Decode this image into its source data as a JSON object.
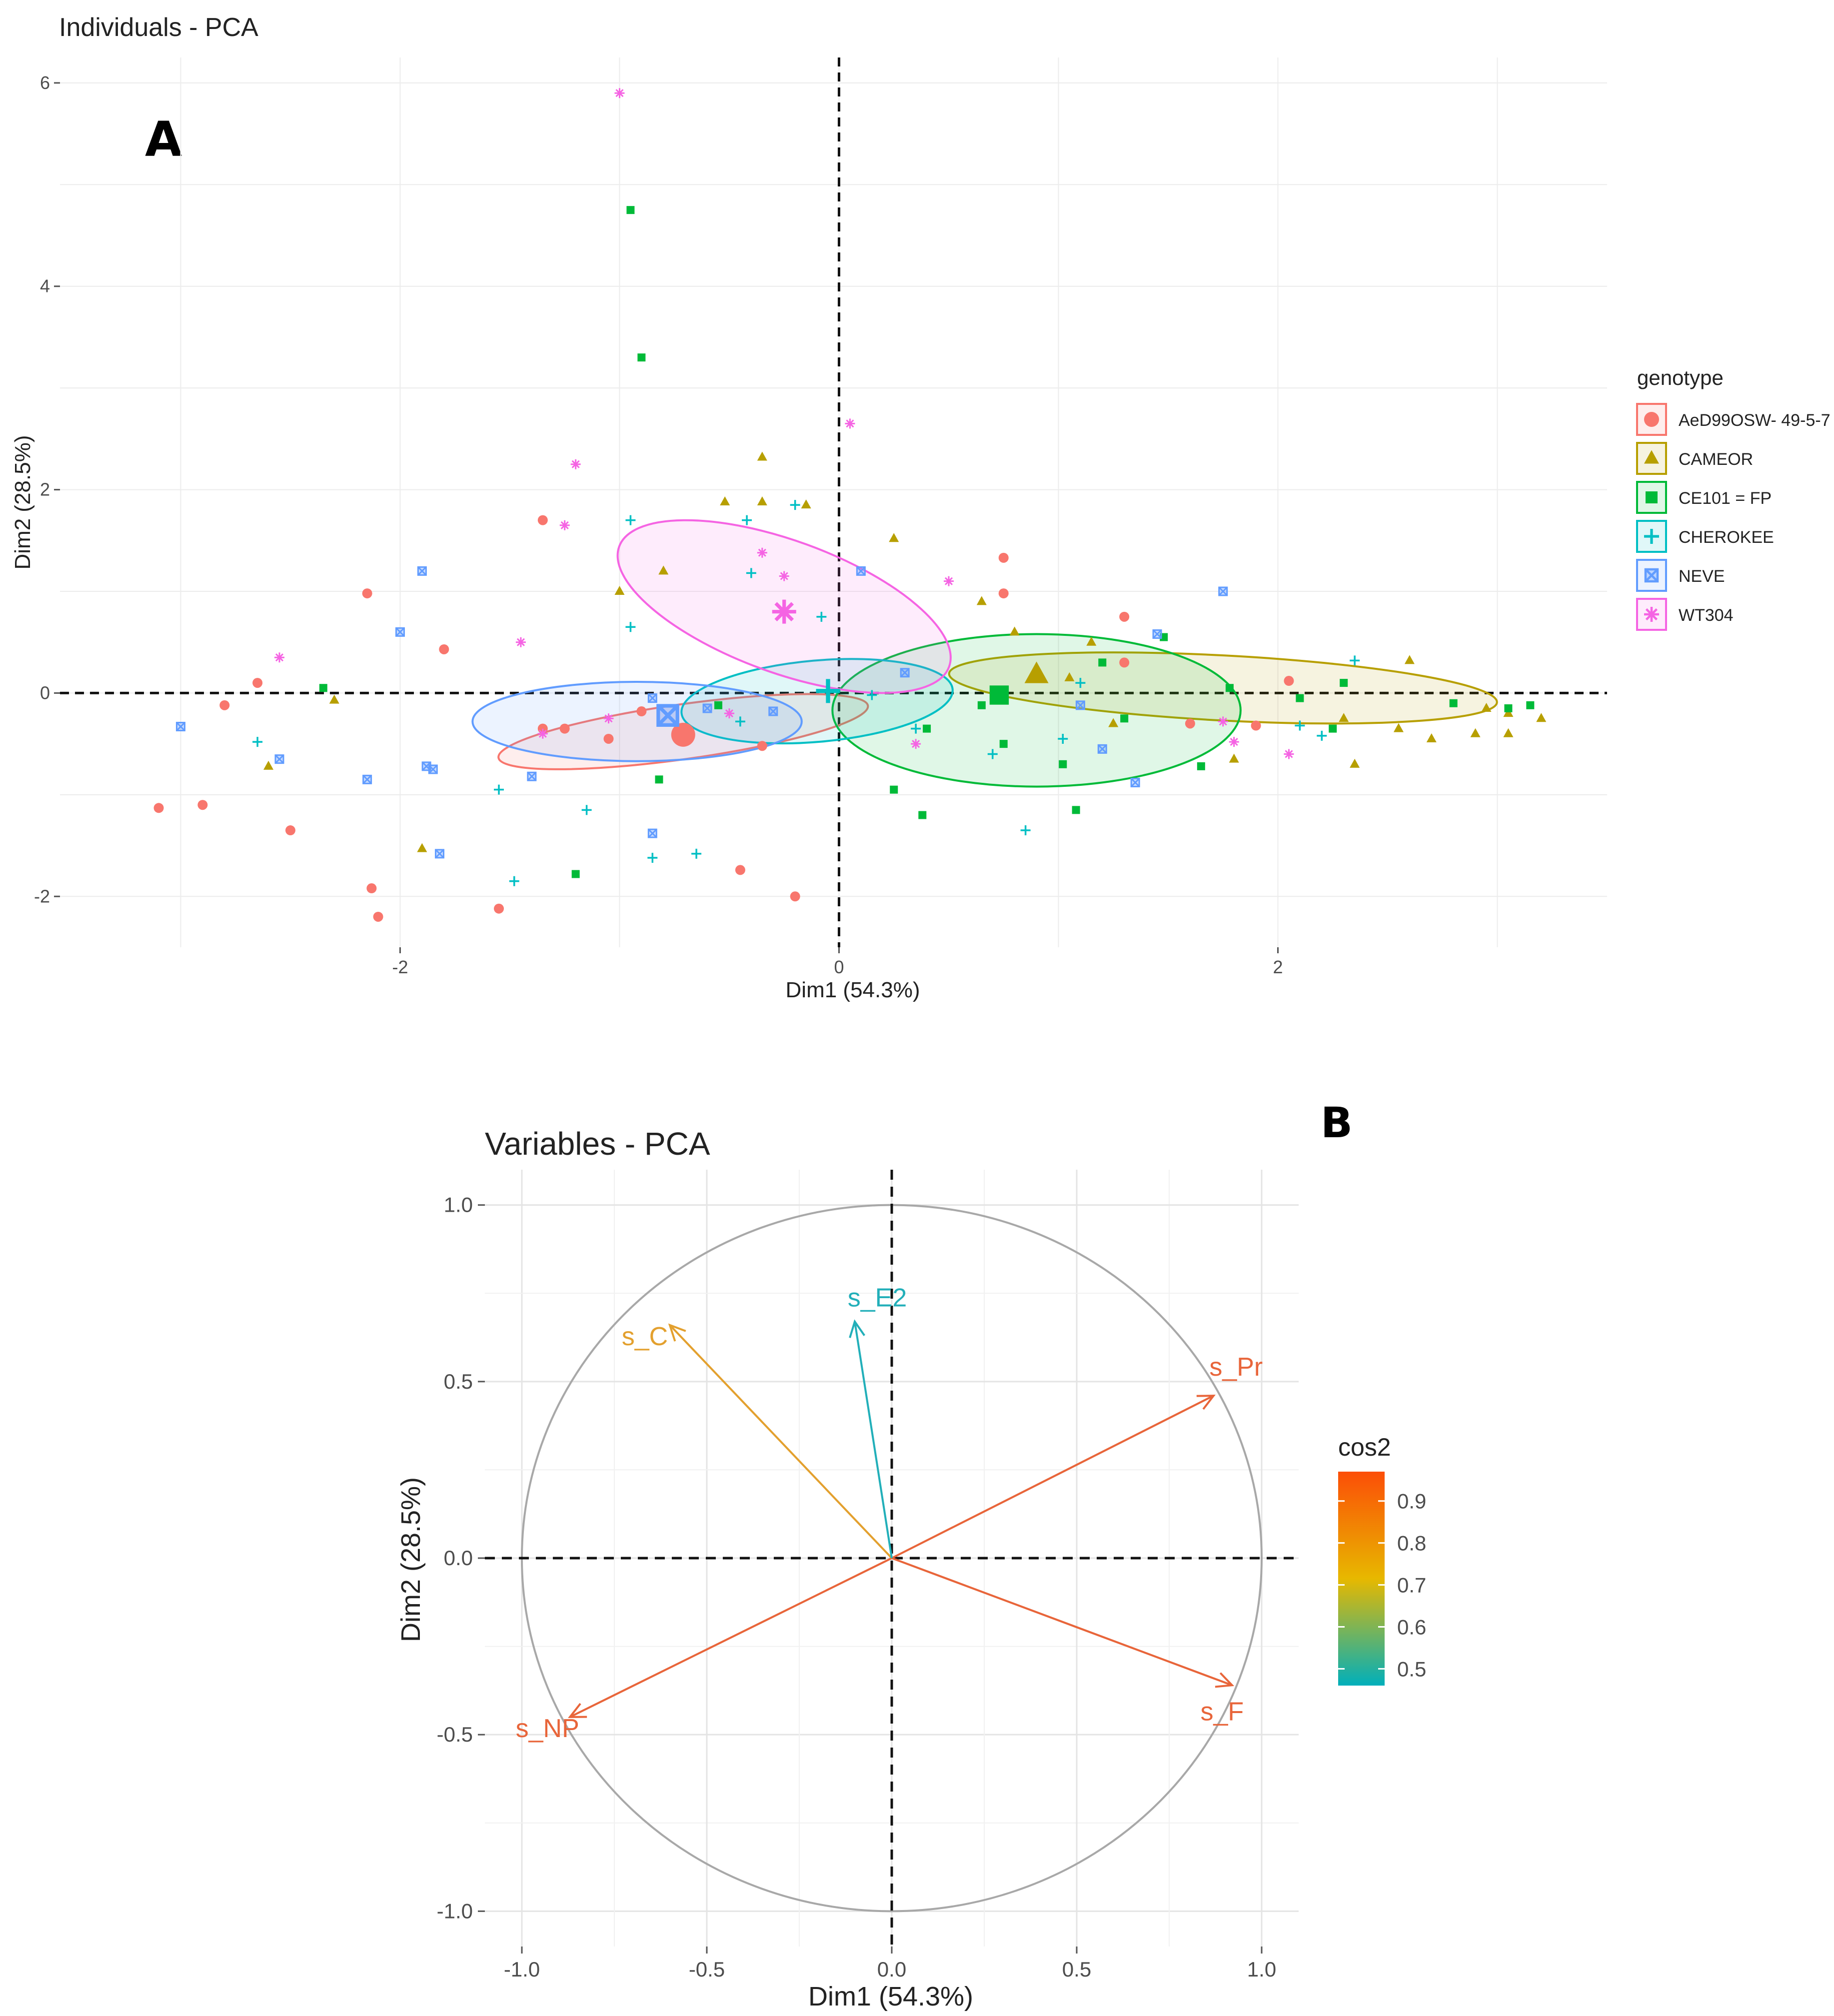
{
  "figure": {
    "panel_a_letter": "A",
    "panel_b_letter": "B"
  },
  "chart_data": [
    {
      "type": "scatter",
      "title": "Individuals - PCA",
      "xlabel": "Dim1 (54.3%)",
      "ylabel": "Dim2 (28.5%)",
      "xlim": [
        -3.55,
        3.5
      ],
      "ylim": [
        -2.5,
        6.25
      ],
      "xticks": [
        -2,
        0,
        2
      ],
      "xtick_labels": [
        "-2",
        "0",
        "2"
      ],
      "yticks": [
        -2,
        0,
        2,
        4,
        6
      ],
      "ytick_labels": [
        "-2",
        "0",
        "2",
        "4",
        "6"
      ],
      "grid": true,
      "reference_lines": {
        "x": 0,
        "y": 0,
        "style": "dashed"
      },
      "legend": {
        "title": "genotype",
        "position": "right"
      },
      "series": [
        {
          "name": "AeD99OSW- 49-5-7",
          "color": "#F8766D",
          "marker": "circle",
          "centroid": [
            -0.71,
            -0.41
          ],
          "ellipse": {
            "cx": -0.71,
            "cy": -0.38,
            "rx": 0.85,
            "ry": 0.27,
            "angle_deg": 8
          },
          "points": [
            [
              -3.1,
              -1.13
            ],
            [
              -2.9,
              -1.1
            ],
            [
              -2.8,
              -0.12
            ],
            [
              -2.65,
              0.1
            ],
            [
              -2.5,
              -1.35
            ],
            [
              -2.15,
              0.98
            ],
            [
              -2.13,
              -1.92
            ],
            [
              -2.1,
              -2.2
            ],
            [
              -1.8,
              0.43
            ],
            [
              -1.55,
              -2.12
            ],
            [
              -1.35,
              1.7
            ],
            [
              -1.35,
              -0.35
            ],
            [
              -1.25,
              -0.35
            ],
            [
              -1.05,
              -0.45
            ],
            [
              -0.45,
              -1.74
            ],
            [
              -0.35,
              -0.52
            ],
            [
              -0.2,
              -2.0
            ],
            [
              -0.9,
              -0.18
            ],
            [
              0.75,
              1.33
            ],
            [
              0.75,
              0.98
            ],
            [
              1.3,
              0.75
            ],
            [
              1.3,
              0.3
            ],
            [
              1.6,
              -0.3
            ],
            [
              2.05,
              0.12
            ],
            [
              1.9,
              -0.32
            ]
          ]
        },
        {
          "name": "CAMEOR",
          "color": "#B79F00",
          "marker": "triangle",
          "centroid": [
            0.9,
            0.18
          ],
          "ellipse": {
            "cx": 1.75,
            "cy": 0.05,
            "rx": 1.25,
            "ry": 0.32,
            "angle_deg": -3
          },
          "points": [
            [
              -2.6,
              -0.72
            ],
            [
              -2.3,
              -0.07
            ],
            [
              -1.9,
              -1.53
            ],
            [
              -1.0,
              1.0
            ],
            [
              -0.8,
              1.2
            ],
            [
              -0.52,
              1.88
            ],
            [
              -0.35,
              2.32
            ],
            [
              -0.35,
              1.88
            ],
            [
              -0.15,
              1.85
            ],
            [
              0.25,
              1.52
            ],
            [
              0.65,
              0.9
            ],
            [
              0.8,
              0.6
            ],
            [
              1.05,
              0.15
            ],
            [
              1.15,
              0.5
            ],
            [
              1.25,
              -0.3
            ],
            [
              1.8,
              -0.65
            ],
            [
              2.3,
              -0.25
            ],
            [
              2.35,
              -0.7
            ],
            [
              2.6,
              0.32
            ],
            [
              2.55,
              -0.35
            ],
            [
              2.7,
              -0.45
            ],
            [
              2.9,
              -0.4
            ],
            [
              2.95,
              -0.15
            ],
            [
              3.05,
              -0.2
            ],
            [
              3.05,
              -0.4
            ],
            [
              3.2,
              -0.25
            ]
          ]
        },
        {
          "name": "CE101 = FP",
          "color": "#00BA38",
          "marker": "square",
          "centroid": [
            0.73,
            -0.02
          ],
          "ellipse": {
            "cx": 0.9,
            "cy": -0.17,
            "rx": 0.93,
            "ry": 0.75,
            "angle_deg": 0
          },
          "points": [
            [
              -2.35,
              0.05
            ],
            [
              -0.95,
              4.75
            ],
            [
              -0.9,
              3.3
            ],
            [
              -1.2,
              -1.78
            ],
            [
              -0.82,
              -0.85
            ],
            [
              -0.55,
              -0.12
            ],
            [
              0.25,
              -0.95
            ],
            [
              0.38,
              -1.2
            ],
            [
              0.4,
              -0.35
            ],
            [
              0.65,
              -0.12
            ],
            [
              0.75,
              -0.5
            ],
            [
              1.02,
              -0.7
            ],
            [
              1.08,
              -1.15
            ],
            [
              1.2,
              0.3
            ],
            [
              1.3,
              -0.25
            ],
            [
              1.48,
              0.55
            ],
            [
              1.65,
              -0.72
            ],
            [
              1.78,
              0.05
            ],
            [
              2.1,
              -0.05
            ],
            [
              2.25,
              -0.35
            ],
            [
              2.3,
              0.1
            ],
            [
              2.8,
              -0.1
            ],
            [
              3.05,
              -0.15
            ],
            [
              3.15,
              -0.12
            ]
          ]
        },
        {
          "name": "CHEROKEE",
          "color": "#00BFC4",
          "marker": "plus",
          "centroid": [
            -0.05,
            0.02
          ],
          "ellipse": {
            "cx": -0.1,
            "cy": -0.08,
            "rx": 0.62,
            "ry": 0.4,
            "angle_deg": 5
          },
          "points": [
            [
              -2.65,
              -0.48
            ],
            [
              -1.55,
              -0.95
            ],
            [
              -1.48,
              -1.85
            ],
            [
              -1.15,
              -1.15
            ],
            [
              -0.95,
              1.7
            ],
            [
              -0.95,
              0.65
            ],
            [
              -0.85,
              -1.62
            ],
            [
              -0.65,
              -1.58
            ],
            [
              -0.45,
              -0.28
            ],
            [
              -0.42,
              1.7
            ],
            [
              -0.4,
              1.18
            ],
            [
              -0.2,
              1.85
            ],
            [
              -0.08,
              0.75
            ],
            [
              0.15,
              -0.02
            ],
            [
              0.35,
              -0.35
            ],
            [
              0.7,
              -0.6
            ],
            [
              0.85,
              -1.35
            ],
            [
              1.02,
              -0.45
            ],
            [
              1.1,
              0.1
            ],
            [
              2.1,
              -0.32
            ],
            [
              2.35,
              0.32
            ],
            [
              2.2,
              -0.42
            ]
          ]
        },
        {
          "name": "NEVE",
          "color": "#619CFF",
          "marker": "box-x",
          "centroid": [
            -0.78,
            -0.22
          ],
          "ellipse": {
            "cx": -0.92,
            "cy": -0.28,
            "rx": 0.75,
            "ry": 0.39,
            "angle_deg": 0
          },
          "points": [
            [
              -3.0,
              -0.33
            ],
            [
              -2.55,
              -0.65
            ],
            [
              -2.15,
              -0.85
            ],
            [
              -2.0,
              0.6
            ],
            [
              -1.9,
              1.2
            ],
            [
              -1.88,
              -0.72
            ],
            [
              -1.85,
              -0.75
            ],
            [
              -1.82,
              -1.58
            ],
            [
              -1.4,
              -0.82
            ],
            [
              -0.85,
              -0.05
            ],
            [
              -0.85,
              -1.38
            ],
            [
              -0.6,
              -0.15
            ],
            [
              -0.3,
              -0.18
            ],
            [
              0.1,
              1.2
            ],
            [
              0.3,
              0.2
            ],
            [
              1.1,
              -0.12
            ],
            [
              1.2,
              -0.55
            ],
            [
              1.35,
              -0.88
            ],
            [
              1.45,
              0.58
            ],
            [
              1.75,
              1.0
            ]
          ]
        },
        {
          "name": "WT304",
          "color": "#F564E3",
          "marker": "asterisk",
          "centroid": [
            -0.25,
            0.8
          ],
          "ellipse": {
            "cx": -0.25,
            "cy": 0.85,
            "rx": 0.8,
            "ry": 0.65,
            "angle_deg": -20
          },
          "points": [
            [
              -2.55,
              0.35
            ],
            [
              -1.45,
              0.5
            ],
            [
              -1.35,
              -0.4
            ],
            [
              -1.2,
              2.25
            ],
            [
              -1.25,
              1.65
            ],
            [
              -1.05,
              -0.25
            ],
            [
              -1.0,
              5.9
            ],
            [
              -0.35,
              1.38
            ],
            [
              -0.25,
              1.15
            ],
            [
              0.05,
              2.65
            ],
            [
              -0.5,
              -0.2
            ],
            [
              0.5,
              1.1
            ],
            [
              0.35,
              -0.5
            ],
            [
              1.75,
              -0.28
            ],
            [
              1.8,
              -0.48
            ],
            [
              2.05,
              -0.6
            ]
          ]
        }
      ]
    },
    {
      "type": "vector",
      "title": "Variables - PCA",
      "xlabel": "Dim1 (54.3%)",
      "ylabel": "Dim2 (28.5%)",
      "xlim": [
        -1.1,
        1.1
      ],
      "ylim": [
        -1.1,
        1.1
      ],
      "xticks": [
        -1.0,
        -0.5,
        0.0,
        0.5,
        1.0
      ],
      "xtick_labels": [
        "-1.0",
        "-0.5",
        "0.0",
        "0.5",
        "1.0"
      ],
      "yticks": [
        -1.0,
        -0.5,
        0.0,
        0.5,
        1.0
      ],
      "ytick_labels": [
        "-1.0",
        "-0.5",
        "0.0",
        "0.5",
        "1.0"
      ],
      "grid": true,
      "unit_circle": true,
      "reference_lines": {
        "x": 0,
        "y": 0,
        "style": "dashed"
      },
      "legend": {
        "title": "cos2",
        "type": "gradient",
        "position": "right",
        "min": 0.46,
        "max": 0.97,
        "ticks": [
          "0.9",
          "0.8",
          "0.7",
          "0.6",
          "0.5"
        ],
        "tick_values": [
          0.9,
          0.8,
          0.7,
          0.6,
          0.5
        ],
        "colors": [
          "#00AFBB",
          "#E7B800",
          "#FC4E07"
        ]
      },
      "vectors": [
        {
          "name": "s_Pr",
          "x": 0.87,
          "y": 0.46,
          "cos2": 0.96,
          "color": "#E8653A"
        },
        {
          "name": "s_F",
          "x": 0.92,
          "y": -0.36,
          "cos2": 0.97,
          "color": "#E8653A"
        },
        {
          "name": "s_NP",
          "x": -0.87,
          "y": -0.45,
          "cos2": 0.95,
          "color": "#E8653A"
        },
        {
          "name": "s_C",
          "x": -0.6,
          "y": 0.66,
          "cos2": 0.7,
          "color": "#E3A02E"
        },
        {
          "name": "s_E2",
          "x": -0.1,
          "y": 0.67,
          "cos2": 0.46,
          "color": "#22AFB9"
        }
      ]
    }
  ]
}
